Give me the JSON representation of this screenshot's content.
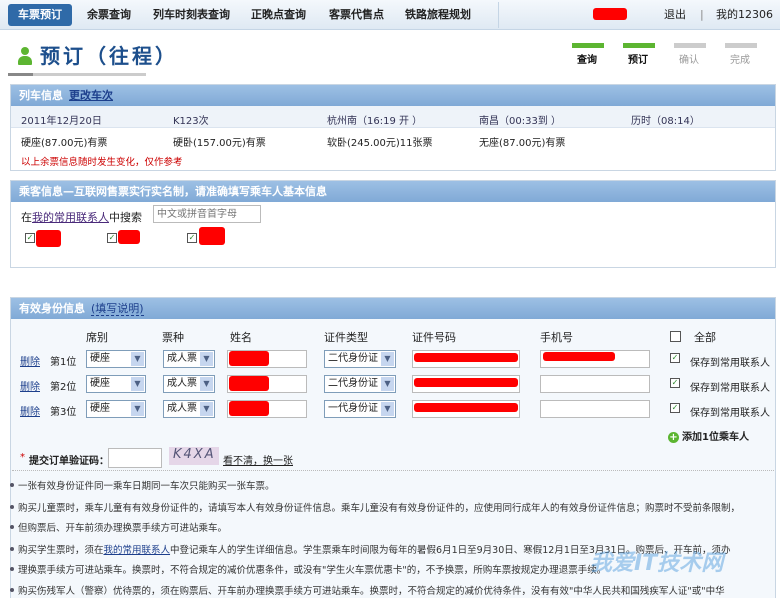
{
  "nav": {
    "tabs": [
      "车票预订",
      "余票查询",
      "列车时刻表查询",
      "正晚点查询",
      "客票代售点",
      "铁路旅程规划"
    ],
    "logout": "退出",
    "divider": "|",
    "my12306": "我的12306"
  },
  "page": {
    "title": "预订（往程）",
    "steps": [
      {
        "label": "查询",
        "done": true
      },
      {
        "label": "预订",
        "done": true
      },
      {
        "label": "确认",
        "done": false
      },
      {
        "label": "完成",
        "done": false
      }
    ]
  },
  "train": {
    "header": "列车信息",
    "change_link": "更改车次",
    "date": "2011年12月20日",
    "train_no": "K123次",
    "depart": "杭州南（16:19 开 ）",
    "arrive": "南昌（00:33到 ）",
    "duration": "历时（08:14）",
    "seats": [
      "硬座(87.00元)有票",
      "硬卧(157.00元)有票",
      "软卧(245.00元)11张票",
      "无座(87.00元)有票"
    ],
    "warning": "以上余票信息随时发生变化，仅作参考"
  },
  "passenger": {
    "header": "乘客信息—互联网售票实行实名制，请准确填写乘车人基本信息",
    "search_prefix": "在",
    "search_link": "我的常用联系人",
    "search_suffix": "中搜索",
    "search_placeholder": "中文或拼音首字母"
  },
  "identity": {
    "header": "有效身份信息",
    "help_link": "(填写说明)",
    "columns": [
      "席别",
      "票种",
      "姓名",
      "证件类型",
      "证件号码",
      "手机号",
      "全部"
    ],
    "rows": [
      {
        "delete": "删除",
        "pos": "第1位",
        "seat": "硬座",
        "ticket": "成人票",
        "id_type": "二代身份证",
        "save": "保存到常用联系人"
      },
      {
        "delete": "删除",
        "pos": "第2位",
        "seat": "硬座",
        "ticket": "成人票",
        "id_type": "二代身份证",
        "save": "保存到常用联系人"
      },
      {
        "delete": "删除",
        "pos": "第3位",
        "seat": "硬座",
        "ticket": "成人票",
        "id_type": "一代身份证",
        "save": "保存到常用联系人"
      }
    ],
    "add_passenger": "添加1位乘车人"
  },
  "captcha": {
    "required": "*",
    "label": "提交订单验证码：",
    "image_text": "K4XA",
    "refresh": "看不清，换一张"
  },
  "notes": [
    "一张有效身份证件同一乘车日期同一车次只能购买一张车票。",
    "购买儿童票时，乘车儿童有有效身份证件的，请填写本人有效身份证件信息。乘车儿童没有有效身份证件的，应使用同行成年人的有效身份证件信息；购票时不受前条限制，",
    "但购票后、开车前须办理换票手续方可进站乘车。",
    "购买学生票时，须在",
    "我的常用联系人",
    "中登记乘车人的学生详细信息。学生票乘车时间限为每年的暑假6月1日至9月30日、寒假12月1日至3月31日。购票后、开车前，须办",
    "理换票手续方可进站乘车。换票时，不符合规定的减价优惠条件，或没有\"学生火车票优惠卡\"的，不予换票，所购车票按规定办理退票手续。",
    "购买伤残军人（警察）优待票的，须在购票后、开车前办理换票手续方可进站乘车。换票时，不符合规定的减价优待条件，没有有效\"中华人民共和国残疾军人证\"或\"中华"
  ],
  "watermark": "我爱IT技术网",
  "colors": {
    "accent": "#2f6aa8",
    "header_bar": "#8fb5de",
    "progress_done": "#5cb531",
    "warning": "#cc0000"
  }
}
